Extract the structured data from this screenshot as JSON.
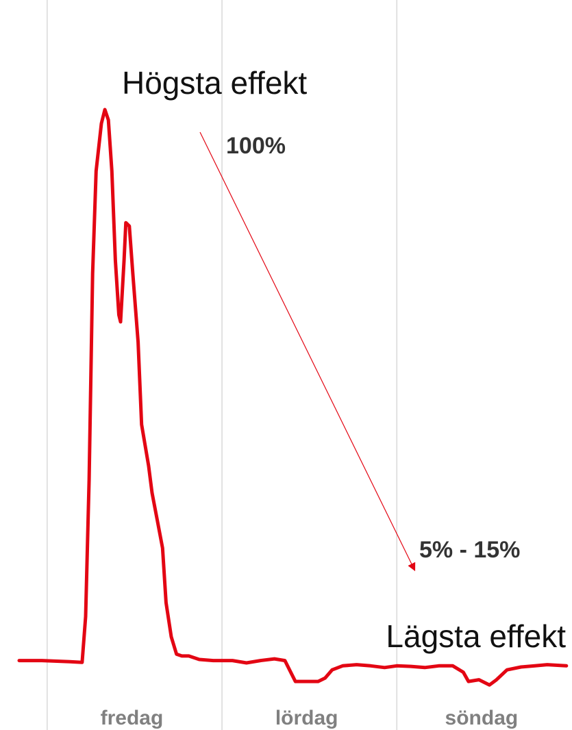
{
  "chart_data": {
    "type": "line",
    "annotations": {
      "high_label": "Högsta effekt",
      "high_value": "100%",
      "low_value": "5% - 15%",
      "low_label": "Lägsta effekt"
    },
    "categories": [
      "fredag",
      "lördag",
      "söndag"
    ],
    "x": [
      -0.16,
      -0.03,
      0.13,
      0.2,
      0.22,
      0.24,
      0.26,
      0.28,
      0.31,
      0.33,
      0.35,
      0.37,
      0.39,
      0.41,
      0.42,
      0.44,
      0.45,
      0.47,
      0.49,
      0.52,
      0.54,
      0.58,
      0.6,
      0.63,
      0.66,
      0.68,
      0.71,
      0.74,
      0.77,
      0.81,
      0.87,
      0.95,
      1.06,
      1.14,
      1.22,
      1.3,
      1.36,
      1.4,
      1.42,
      1.5,
      1.55,
      1.59,
      1.63,
      1.69,
      1.77,
      1.85,
      1.93,
      2.0,
      2.08,
      2.16,
      2.24,
      2.32,
      2.38,
      2.41,
      2.47,
      2.53,
      2.57,
      2.63,
      2.71,
      2.79,
      2.86,
      2.97
    ],
    "series": [
      {
        "color": "#e30613",
        "values": [
          5.0,
          5.0,
          4.8,
          4.7,
          12.6,
          36.2,
          71.7,
          89.4,
          97.6,
          100,
          98.2,
          89.4,
          74.0,
          64.6,
          63.4,
          74.0,
          80.5,
          79.9,
          71.7,
          59.9,
          45.7,
          38.6,
          33.9,
          29.2,
          24.4,
          15.0,
          9.1,
          6.1,
          5.8,
          5.8,
          5.2,
          5.0,
          5.0,
          4.6,
          5.0,
          5.3,
          5.0,
          2.6,
          1.4,
          1.4,
          1.4,
          2.0,
          3.4,
          4.1,
          4.3,
          4.1,
          3.8,
          4.1,
          4.0,
          3.8,
          4.1,
          4.1,
          3.0,
          1.4,
          1.7,
          0.8,
          1.7,
          3.4,
          3.9,
          4.1,
          4.3,
          4.1
        ]
      }
    ],
    "xlim": [
      -0.16,
      3.0
    ],
    "xticks": [
      0,
      1,
      2
    ],
    "ylim": [
      0,
      100
    ],
    "grid": true
  }
}
